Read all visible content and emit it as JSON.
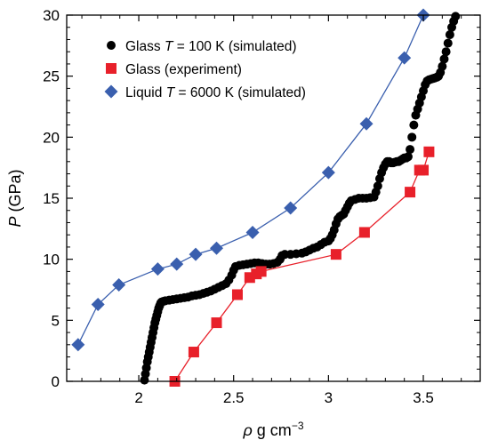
{
  "chart_data": {
    "type": "scatter",
    "xlabel": {
      "symbol": "ρ",
      "unit": " g cm",
      "exp": "−3"
    },
    "ylabel": {
      "symbol": "P",
      "unit": " (GPa)"
    },
    "xlim": [
      1.62,
      3.8
    ],
    "ylim": [
      0,
      30
    ],
    "xticks": [
      "2",
      "2.5",
      "3",
      "3.5"
    ],
    "xtick_values": [
      2,
      2.5,
      3,
      3.5
    ],
    "yticks": [
      "0",
      "5",
      "10",
      "15",
      "20",
      "25",
      "30"
    ],
    "ytick_values": [
      0,
      5,
      10,
      15,
      20,
      25,
      30
    ],
    "grid": false,
    "legend_placement": "top-left",
    "series": [
      {
        "legend": {
          "pre": "Glass ",
          "italic": "T",
          "post": " = 100 K (simulated)"
        },
        "marker": "circle",
        "line": false,
        "color": "#000000",
        "points": [
          [
            2.03,
            0.1
          ],
          [
            2.035,
            0.6
          ],
          [
            2.04,
            1.1
          ],
          [
            2.045,
            1.6
          ],
          [
            2.05,
            2.0
          ],
          [
            2.055,
            2.4
          ],
          [
            2.06,
            2.8
          ],
          [
            2.065,
            3.2
          ],
          [
            2.07,
            3.6
          ],
          [
            2.075,
            4.0
          ],
          [
            2.08,
            4.4
          ],
          [
            2.085,
            4.8
          ],
          [
            2.09,
            5.1
          ],
          [
            2.095,
            5.4
          ],
          [
            2.1,
            5.7
          ],
          [
            2.105,
            6.0
          ],
          [
            2.11,
            6.2
          ],
          [
            2.115,
            6.4
          ],
          [
            2.12,
            6.5
          ],
          [
            2.13,
            6.55
          ],
          [
            2.14,
            6.6
          ],
          [
            2.16,
            6.65
          ],
          [
            2.18,
            6.7
          ],
          [
            2.2,
            6.75
          ],
          [
            2.22,
            6.8
          ],
          [
            2.24,
            6.85
          ],
          [
            2.26,
            6.9
          ],
          [
            2.28,
            7.0
          ],
          [
            2.3,
            7.05
          ],
          [
            2.32,
            7.1
          ],
          [
            2.34,
            7.2
          ],
          [
            2.36,
            7.3
          ],
          [
            2.38,
            7.4
          ],
          [
            2.4,
            7.55
          ],
          [
            2.42,
            7.7
          ],
          [
            2.44,
            7.85
          ],
          [
            2.46,
            8.0
          ],
          [
            2.475,
            8.3
          ],
          [
            2.49,
            8.7
          ],
          [
            2.5,
            9.1
          ],
          [
            2.51,
            9.4
          ],
          [
            2.53,
            9.5
          ],
          [
            2.55,
            9.55
          ],
          [
            2.57,
            9.6
          ],
          [
            2.59,
            9.65
          ],
          [
            2.61,
            9.7
          ],
          [
            2.63,
            9.7
          ],
          [
            2.65,
            9.65
          ],
          [
            2.67,
            9.6
          ],
          [
            2.69,
            9.6
          ],
          [
            2.71,
            9.65
          ],
          [
            2.73,
            9.75
          ],
          [
            2.745,
            10.0
          ],
          [
            2.755,
            10.3
          ],
          [
            2.77,
            10.4
          ],
          [
            2.8,
            10.4
          ],
          [
            2.83,
            10.45
          ],
          [
            2.86,
            10.5
          ],
          [
            2.88,
            10.6
          ],
          [
            2.9,
            10.75
          ],
          [
            2.92,
            10.9
          ],
          [
            2.94,
            11.0
          ],
          [
            2.96,
            11.2
          ],
          [
            2.98,
            11.4
          ],
          [
            3.0,
            11.5
          ],
          [
            3.01,
            11.7
          ],
          [
            3.02,
            12.0
          ],
          [
            3.03,
            12.4
          ],
          [
            3.04,
            12.9
          ],
          [
            3.05,
            13.3
          ],
          [
            3.06,
            13.5
          ],
          [
            3.07,
            13.6
          ],
          [
            3.08,
            13.7
          ],
          [
            3.09,
            14.0
          ],
          [
            3.1,
            14.3
          ],
          [
            3.11,
            14.6
          ],
          [
            3.12,
            14.8
          ],
          [
            3.14,
            14.9
          ],
          [
            3.16,
            15.0
          ],
          [
            3.18,
            15.0
          ],
          [
            3.2,
            15.0
          ],
          [
            3.22,
            15.05
          ],
          [
            3.24,
            15.1
          ],
          [
            3.25,
            15.5
          ],
          [
            3.26,
            16.0
          ],
          [
            3.27,
            16.6
          ],
          [
            3.28,
            17.1
          ],
          [
            3.29,
            17.5
          ],
          [
            3.3,
            17.8
          ],
          [
            3.31,
            18.0
          ],
          [
            3.32,
            18.0
          ],
          [
            3.33,
            17.9
          ],
          [
            3.34,
            17.9
          ],
          [
            3.35,
            17.95
          ],
          [
            3.36,
            18.0
          ],
          [
            3.37,
            18.0
          ],
          [
            3.38,
            18.1
          ],
          [
            3.39,
            18.2
          ],
          [
            3.4,
            18.3
          ],
          [
            3.41,
            18.3
          ],
          [
            3.42,
            18.4
          ],
          [
            3.43,
            19.0
          ],
          [
            3.44,
            20.0
          ],
          [
            3.45,
            21.0
          ],
          [
            3.46,
            21.8
          ],
          [
            3.47,
            22.3
          ],
          [
            3.48,
            22.8
          ],
          [
            3.49,
            23.3
          ],
          [
            3.5,
            23.8
          ],
          [
            3.51,
            24.3
          ],
          [
            3.52,
            24.6
          ],
          [
            3.53,
            24.7
          ],
          [
            3.54,
            24.75
          ],
          [
            3.55,
            24.8
          ],
          [
            3.56,
            24.85
          ],
          [
            3.57,
            24.9
          ],
          [
            3.58,
            25.0
          ],
          [
            3.59,
            25.3
          ],
          [
            3.6,
            25.8
          ],
          [
            3.61,
            26.4
          ],
          [
            3.62,
            27.0
          ],
          [
            3.63,
            27.7
          ],
          [
            3.64,
            28.4
          ],
          [
            3.65,
            29.0
          ],
          [
            3.66,
            29.5
          ],
          [
            3.67,
            29.9
          ]
        ]
      },
      {
        "legend": {
          "pre": "Glass (experiment)",
          "italic": "",
          "post": ""
        },
        "marker": "square",
        "line": true,
        "color": "#e8202a",
        "points": [
          [
            2.19,
            0.0
          ],
          [
            2.29,
            2.4
          ],
          [
            2.41,
            4.8
          ],
          [
            2.52,
            7.1
          ],
          [
            2.585,
            8.5
          ],
          [
            2.62,
            8.8
          ],
          [
            2.645,
            9.0
          ],
          [
            3.04,
            10.4
          ],
          [
            3.19,
            12.2
          ],
          [
            3.43,
            15.5
          ],
          [
            3.48,
            17.3
          ],
          [
            3.5,
            17.3
          ],
          [
            3.53,
            18.8
          ]
        ]
      },
      {
        "legend": {
          "pre": "Liquid ",
          "italic": "T",
          "post": " = 6000 K (simulated)"
        },
        "marker": "diamond",
        "line": true,
        "color": "#3a5fae",
        "points": [
          [
            1.68,
            3.0
          ],
          [
            1.785,
            6.3
          ],
          [
            1.895,
            7.9
          ],
          [
            2.1,
            9.2
          ],
          [
            2.2,
            9.6
          ],
          [
            2.3,
            10.4
          ],
          [
            2.41,
            10.9
          ],
          [
            2.6,
            12.2
          ],
          [
            2.8,
            14.2
          ],
          [
            3.0,
            17.1
          ],
          [
            3.2,
            21.1
          ],
          [
            3.4,
            26.5
          ],
          [
            3.5,
            30.0
          ]
        ]
      }
    ]
  }
}
